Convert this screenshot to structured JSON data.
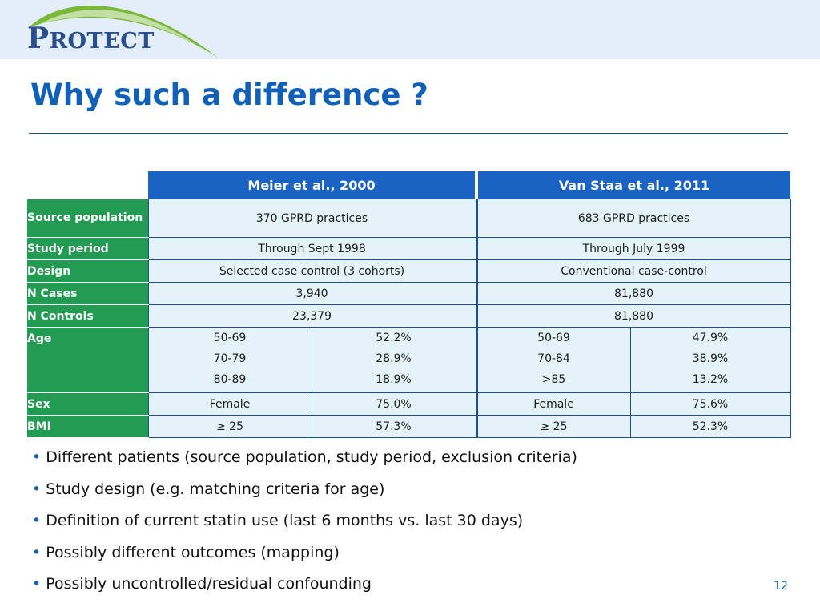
{
  "logo": {
    "text_first": "P",
    "text_rest": "ROTECT"
  },
  "slide": {
    "title": "Why such a difference ?",
    "page_number": "12"
  },
  "table": {
    "headers": [
      "Meier et al., 2000",
      "Van Staa et al., 2011"
    ],
    "rows": [
      {
        "label": "Source population",
        "meier": "370 GPRD practices",
        "vanstaa": "683 GPRD practices"
      },
      {
        "label": "Study period",
        "meier": "Through Sept 1998",
        "vanstaa": "Through July 1999"
      },
      {
        "label": "Design",
        "meier": "Selected case control (3 cohorts)",
        "vanstaa": "Conventional case-control"
      },
      {
        "label": "N Cases",
        "meier": "3,940",
        "vanstaa": "81,880"
      },
      {
        "label": "N Controls",
        "meier": "23,379",
        "vanstaa": "81,880"
      }
    ],
    "age": {
      "label": "Age",
      "meier": [
        {
          "range": "50-69",
          "pct": "52.2%"
        },
        {
          "range": "70-79",
          "pct": "28.9%"
        },
        {
          "range": "80-89",
          "pct": "18.9%"
        }
      ],
      "vanstaa": [
        {
          "range": "50-69",
          "pct": "47.9%"
        },
        {
          "range": "70-84",
          "pct": "38.9%"
        },
        {
          "range": ">85",
          "pct": "13.2%"
        }
      ]
    },
    "sex": {
      "label": "Sex",
      "meier_category": "Female",
      "meier_pct": "75.0%",
      "vanstaa_category": "Female",
      "vanstaa_pct": "75.6%"
    },
    "bmi": {
      "label": "BMI",
      "meier_category": "≥ 25",
      "meier_pct": "57.3%",
      "vanstaa_category": "≥ 25",
      "vanstaa_pct": "52.3%"
    }
  },
  "bullets": [
    "Different patients (source population, study period, exclusion criteria)",
    "Study design (e.g. matching criteria for age)",
    "Definition of current statin use (last 6 months vs. last 30 days)",
    "Possibly different outcomes (mapping)",
    "Possibly uncontrolled/residual confounding"
  ],
  "colors": {
    "title_blue": "#1060b8",
    "header_blue": "#1a63c3",
    "label_green": "#239b52",
    "cell_bg": "#e3f3f9",
    "logo_navy": "#2a4f8e"
  }
}
